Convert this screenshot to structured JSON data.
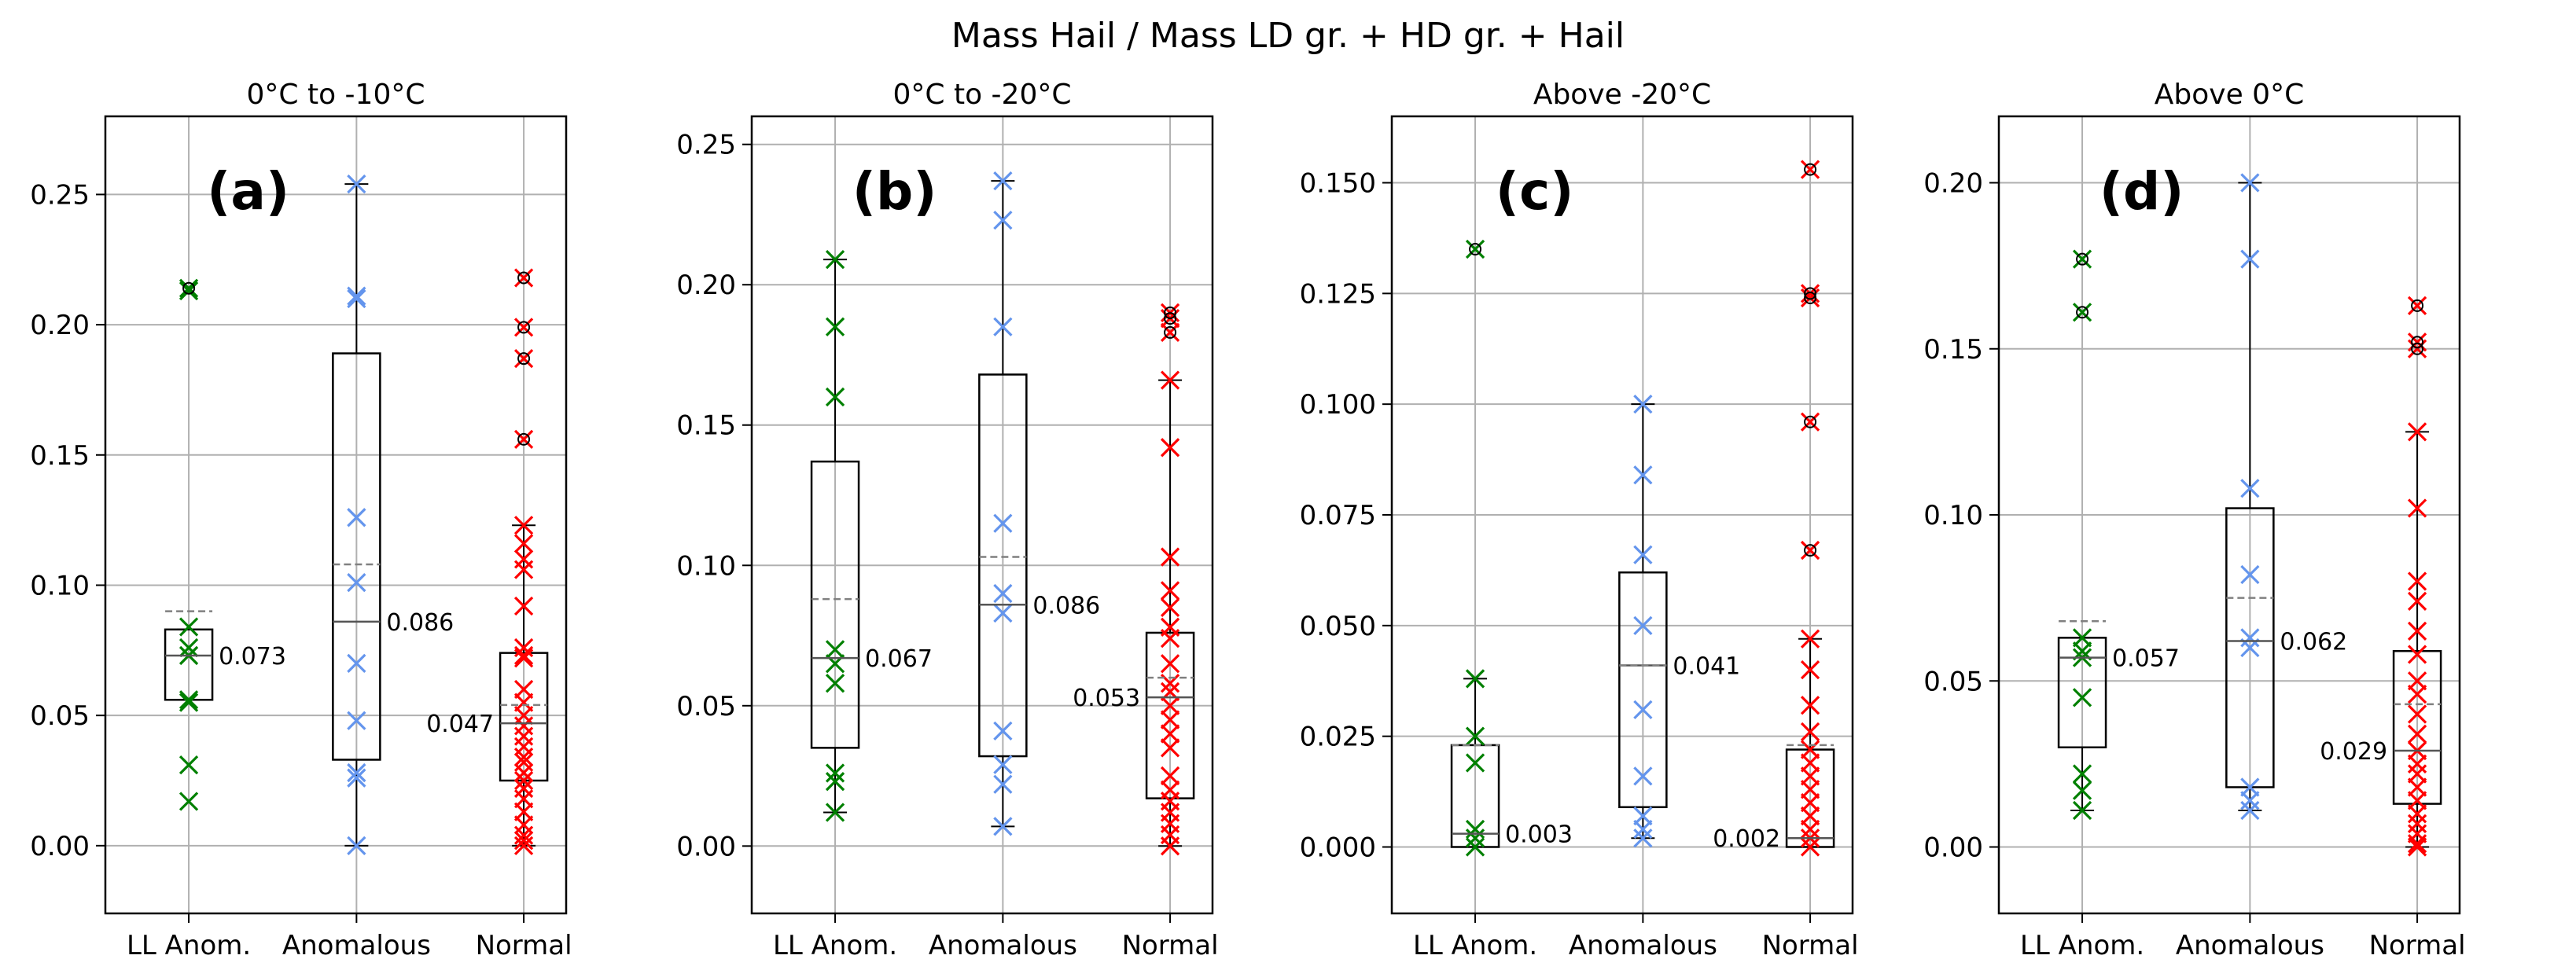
{
  "suptitle": "Mass Hail / Mass LD gr. + HD gr. + Hail",
  "colors": {
    "ll_anom": "#008000",
    "anomalous": "#6495ED",
    "normal": "#FF0000",
    "mean_line": "#808080",
    "grid": "#b0b0b0"
  },
  "chart_data": [
    {
      "type": "box",
      "panel_label": "(a)",
      "title": "0°C to -10°C",
      "categories": [
        "LL Anom.",
        "Anomalous",
        "Normal"
      ],
      "ylim": [
        -0.026,
        0.28
      ],
      "yticks": [
        0.0,
        0.05,
        0.1,
        0.15,
        0.2,
        0.25
      ],
      "ytick_labels": [
        "0.00",
        "0.05",
        "0.10",
        "0.15",
        "0.20",
        "0.25"
      ],
      "grid": true,
      "series": [
        {
          "name": "LL Anom.",
          "color_key": "ll_anom",
          "q1": 0.056,
          "median": 0.073,
          "q3": 0.083,
          "whisker_low": 0.056,
          "whisker_high": 0.083,
          "mean": 0.09,
          "median_label": "0.073",
          "median_label_side": "right",
          "points": [
            0.214,
            0.213,
            0.084,
            0.076,
            0.073,
            0.056,
            0.055,
            0.031,
            0.017
          ],
          "outliers": [
            0.214
          ]
        },
        {
          "name": "Anomalous",
          "color_key": "anomalous",
          "q1": 0.033,
          "median": 0.086,
          "q3": 0.189,
          "whisker_low": 0.0,
          "whisker_high": 0.254,
          "mean": 0.108,
          "median_label": "0.086",
          "median_label_side": "right",
          "points": [
            0.254,
            0.211,
            0.21,
            0.126,
            0.101,
            0.07,
            0.048,
            0.028,
            0.026,
            0.0
          ],
          "outliers": []
        },
        {
          "name": "Normal",
          "color_key": "normal",
          "q1": 0.025,
          "median": 0.047,
          "q3": 0.074,
          "whisker_low": 0.0,
          "whisker_high": 0.123,
          "mean": 0.054,
          "median_label": "0.047",
          "median_label_side": "left",
          "points": [
            0.218,
            0.199,
            0.187,
            0.156,
            0.123,
            0.116,
            0.11,
            0.106,
            0.092,
            0.076,
            0.073,
            0.072,
            0.06,
            0.055,
            0.05,
            0.046,
            0.042,
            0.038,
            0.034,
            0.032,
            0.028,
            0.025,
            0.022,
            0.018,
            0.013,
            0.008,
            0.004,
            0.002,
            0.0
          ],
          "outliers": [
            0.218,
            0.199,
            0.187,
            0.156
          ]
        }
      ]
    },
    {
      "type": "box",
      "panel_label": "(b)",
      "title": "0°C to -20°C",
      "categories": [
        "LL Anom.",
        "Anomalous",
        "Normal"
      ],
      "ylim": [
        -0.024,
        0.26
      ],
      "yticks": [
        0.0,
        0.05,
        0.1,
        0.15,
        0.2,
        0.25
      ],
      "ytick_labels": [
        "0.00",
        "0.05",
        "0.10",
        "0.15",
        "0.20",
        "0.25"
      ],
      "grid": true,
      "series": [
        {
          "name": "LL Anom.",
          "color_key": "ll_anom",
          "q1": 0.035,
          "median": 0.067,
          "q3": 0.137,
          "whisker_low": 0.012,
          "whisker_high": 0.209,
          "mean": 0.088,
          "median_label": "0.067",
          "median_label_side": "right",
          "points": [
            0.209,
            0.185,
            0.16,
            0.07,
            0.065,
            0.058,
            0.026,
            0.023,
            0.012
          ],
          "outliers": []
        },
        {
          "name": "Anomalous",
          "color_key": "anomalous",
          "q1": 0.032,
          "median": 0.086,
          "q3": 0.168,
          "whisker_low": 0.007,
          "whisker_high": 0.237,
          "mean": 0.103,
          "median_label": "0.086",
          "median_label_side": "right",
          "points": [
            0.237,
            0.223,
            0.185,
            0.115,
            0.09,
            0.083,
            0.041,
            0.029,
            0.022,
            0.007
          ],
          "outliers": []
        },
        {
          "name": "Normal",
          "color_key": "normal",
          "q1": 0.017,
          "median": 0.053,
          "q3": 0.076,
          "whisker_low": 0.0,
          "whisker_high": 0.166,
          "mean": 0.06,
          "median_label": "0.053",
          "median_label_side": "left",
          "points": [
            0.19,
            0.188,
            0.183,
            0.166,
            0.142,
            0.103,
            0.091,
            0.085,
            0.078,
            0.074,
            0.065,
            0.058,
            0.055,
            0.05,
            0.045,
            0.04,
            0.035,
            0.025,
            0.02,
            0.016,
            0.012,
            0.008,
            0.004,
            0.0
          ],
          "outliers": [
            0.19,
            0.188,
            0.183
          ]
        }
      ]
    },
    {
      "type": "box",
      "panel_label": "(c)",
      "title": "Above -20°C",
      "categories": [
        "LL Anom.",
        "Anomalous",
        "Normal"
      ],
      "ylim": [
        -0.015,
        0.165
      ],
      "yticks": [
        0.0,
        0.025,
        0.05,
        0.075,
        0.1,
        0.125,
        0.15
      ],
      "ytick_labels": [
        "0.000",
        "0.025",
        "0.050",
        "0.075",
        "0.100",
        "0.125",
        "0.150"
      ],
      "grid": true,
      "series": [
        {
          "name": "LL Anom.",
          "color_key": "ll_anom",
          "q1": 0.0,
          "median": 0.003,
          "q3": 0.023,
          "whisker_low": 0.0,
          "whisker_high": 0.038,
          "mean": 0.023,
          "median_label": "0.003",
          "median_label_side": "right",
          "points": [
            0.135,
            0.038,
            0.025,
            0.019,
            0.004,
            0.002,
            0.0
          ],
          "outliers": [
            0.135
          ]
        },
        {
          "name": "Anomalous",
          "color_key": "anomalous",
          "q1": 0.009,
          "median": 0.041,
          "q3": 0.062,
          "whisker_low": 0.002,
          "whisker_high": 0.1,
          "mean": 0.041,
          "median_label": "0.041",
          "median_label_side": "right",
          "points": [
            0.1,
            0.084,
            0.066,
            0.05,
            0.031,
            0.016,
            0.007,
            0.004,
            0.002
          ],
          "outliers": []
        },
        {
          "name": "Normal",
          "color_key": "normal",
          "q1": 0.0,
          "median": 0.002,
          "q3": 0.022,
          "whisker_low": 0.0,
          "whisker_high": 0.047,
          "mean": 0.023,
          "median_label": "0.002",
          "median_label_side": "left",
          "points": [
            0.153,
            0.125,
            0.124,
            0.096,
            0.067,
            0.047,
            0.04,
            0.032,
            0.026,
            0.022,
            0.019,
            0.016,
            0.013,
            0.01,
            0.007,
            0.004,
            0.002,
            0.0
          ],
          "outliers": [
            0.153,
            0.125,
            0.124,
            0.096,
            0.067
          ]
        }
      ]
    },
    {
      "type": "box",
      "panel_label": "(d)",
      "title": "Above 0°C",
      "categories": [
        "LL Anom.",
        "Anomalous",
        "Normal"
      ],
      "ylim": [
        -0.02,
        0.22
      ],
      "yticks": [
        0.0,
        0.05,
        0.1,
        0.15,
        0.2
      ],
      "ytick_labels": [
        "0.00",
        "0.05",
        "0.10",
        "0.15",
        "0.20"
      ],
      "grid": true,
      "series": [
        {
          "name": "LL Anom.",
          "color_key": "ll_anom",
          "q1": 0.03,
          "median": 0.057,
          "q3": 0.063,
          "whisker_low": 0.011,
          "whisker_high": 0.063,
          "mean": 0.068,
          "median_label": "0.057",
          "median_label_side": "right",
          "points": [
            0.177,
            0.161,
            0.063,
            0.059,
            0.057,
            0.045,
            0.022,
            0.017,
            0.011
          ],
          "outliers": [
            0.177,
            0.161
          ]
        },
        {
          "name": "Anomalous",
          "color_key": "anomalous",
          "q1": 0.018,
          "median": 0.062,
          "q3": 0.102,
          "whisker_low": 0.011,
          "whisker_high": 0.2,
          "mean": 0.075,
          "median_label": "0.062",
          "median_label_side": "right",
          "points": [
            0.2,
            0.177,
            0.108,
            0.082,
            0.063,
            0.06,
            0.018,
            0.014,
            0.011
          ],
          "outliers": []
        },
        {
          "name": "Normal",
          "color_key": "normal",
          "q1": 0.013,
          "median": 0.029,
          "q3": 0.059,
          "whisker_low": 0.0,
          "whisker_high": 0.125,
          "mean": 0.043,
          "median_label": "0.029",
          "median_label_side": "left",
          "points": [
            0.163,
            0.152,
            0.15,
            0.125,
            0.102,
            0.08,
            0.074,
            0.065,
            0.058,
            0.05,
            0.046,
            0.04,
            0.034,
            0.029,
            0.025,
            0.022,
            0.018,
            0.014,
            0.01,
            0.007,
            0.004,
            0.001,
            0.0
          ],
          "outliers": [
            0.163,
            0.152,
            0.15
          ]
        }
      ]
    }
  ]
}
